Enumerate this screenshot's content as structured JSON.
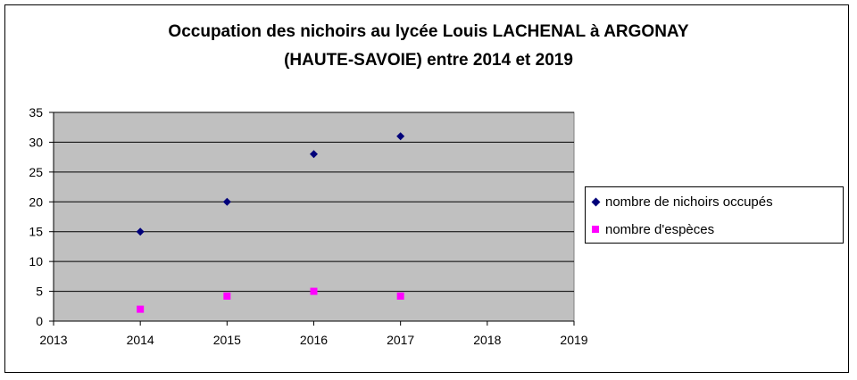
{
  "title_line1": "Occupation des nichoirs au lycée Louis LACHENAL à ARGONAY",
  "title_line2": "(HAUTE-SAVOIE) entre 2014 et 2019",
  "colors": {
    "plot_bg": "#c0c0c0",
    "series1": "#00007a",
    "series2": "#ff00ff"
  },
  "chart_data": {
    "type": "scatter",
    "title": "Occupation des nichoirs au lycée Louis LACHENAL à ARGONAY (HAUTE-SAVOIE) entre 2014 et 2019",
    "xlim": [
      2013,
      2019
    ],
    "ylim": [
      0,
      35
    ],
    "xticks": [
      "2013",
      "2014",
      "2015",
      "2016",
      "2017",
      "2018",
      "2019"
    ],
    "yticks": [
      "0",
      "5",
      "10",
      "15",
      "20",
      "25",
      "30",
      "35"
    ],
    "grid": true,
    "legend_position": "right",
    "series": [
      {
        "name": "nombre de nichoirs occupés",
        "marker": "diamond",
        "x": [
          2014,
          2015,
          2016,
          2017
        ],
        "y": [
          15,
          20,
          28,
          31
        ]
      },
      {
        "name": "nombre d'espèces",
        "marker": "square",
        "x": [
          2014,
          2015,
          2016,
          2017
        ],
        "y": [
          2,
          4.2,
          5,
          4.2
        ]
      }
    ]
  }
}
